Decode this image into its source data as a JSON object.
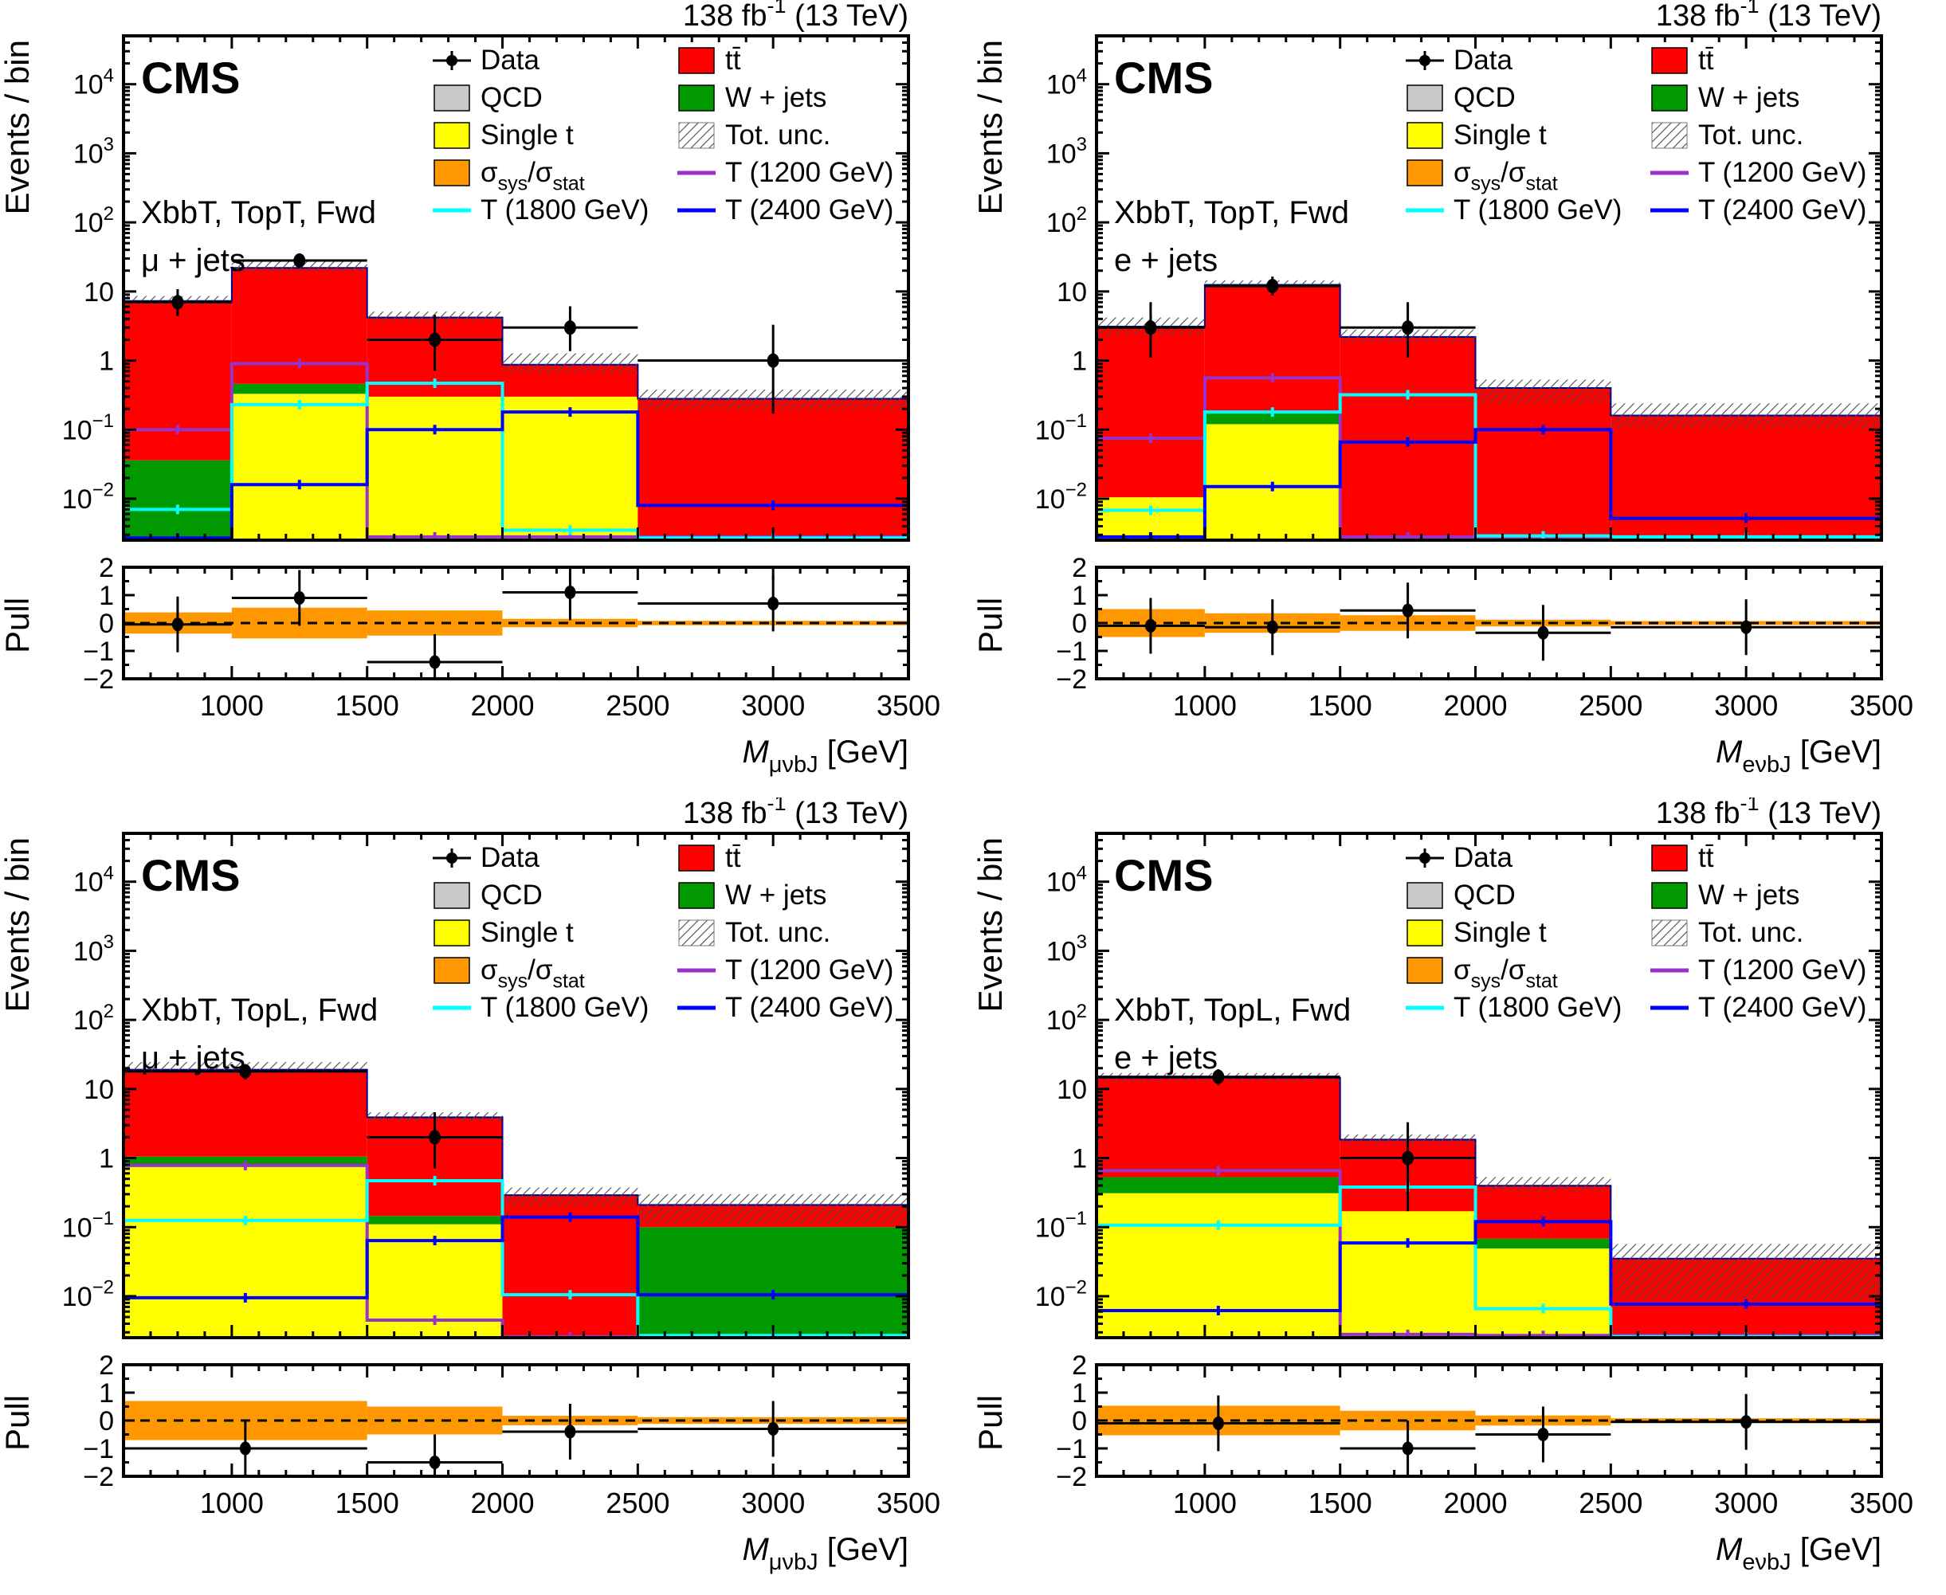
{
  "chart_data": {
    "type": "bar",
    "subtype": "stacked-log-histogram-with-pull-panels",
    "title": "CMS vector-like T quark search, post-fit mass distributions",
    "shared": {
      "cms_label": "CMS",
      "lumi_parts": [
        {
          "t": "138 fb"
        },
        {
          "t": "-1",
          "sup": 1
        },
        {
          "t": " (13 TeV)"
        }
      ],
      "ylabel": "Events / bin",
      "pull_label": "Pull",
      "x_unit": " [GeV]",
      "x_main": "M",
      "xticks_major": [
        1000,
        1500,
        2000,
        2500,
        3000,
        3500
      ],
      "x_min": 600,
      "x_max": 3500,
      "ylog_min_exp": -2.6,
      "ylog_max_exp": 4.7,
      "y_decade_labels": [
        -2,
        -1,
        0,
        1,
        2,
        3,
        4
      ],
      "pull_range": [
        -2,
        2
      ],
      "pull_ticks": [
        -2,
        -1,
        0,
        1,
        2
      ],
      "colors": {
        "ttbar": "#ff0000",
        "wjets": "#009900",
        "singlet": "#ffff00",
        "qcd": "#c8c8c8",
        "sys_band": "#ff9800",
        "t1200": "#9932cc",
        "t1800": "#00ffff",
        "t2400": "#0000ff",
        "stack_outline": "#00008b",
        "hatch_line": "#4a4a4a"
      },
      "legend": {
        "col1": [
          {
            "name": "data",
            "type": "marker",
            "parts": [
              {
                "t": "Data"
              }
            ]
          },
          {
            "name": "qcd",
            "type": "fill",
            "color": "#c8c8c8",
            "parts": [
              {
                "t": "QCD"
              }
            ]
          },
          {
            "name": "single-t",
            "type": "fill",
            "color": "#ffff00",
            "parts": [
              {
                "t": "Single t"
              }
            ]
          },
          {
            "name": "sys-stat",
            "type": "fill",
            "color": "#ff9800",
            "parts": [
              {
                "t": "σ"
              },
              {
                "t": "sys",
                "sub": 1
              },
              {
                "t": "/σ"
              },
              {
                "t": "stat",
                "sub": 1
              }
            ]
          },
          {
            "name": "t1800",
            "type": "line",
            "color": "#00ffff",
            "parts": [
              {
                "t": "T (1800 GeV)"
              }
            ]
          }
        ],
        "col2": [
          {
            "name": "ttbar",
            "type": "fill",
            "color": "#ff0000",
            "parts": [
              {
                "t": "tt̄"
              }
            ]
          },
          {
            "name": "wjets",
            "type": "fill",
            "color": "#009900",
            "parts": [
              {
                "t": "W + jets"
              }
            ]
          },
          {
            "name": "tot-unc",
            "type": "hatch",
            "parts": [
              {
                "t": "Tot. unc."
              }
            ]
          },
          {
            "name": "t1200",
            "type": "line",
            "color": "#9932cc",
            "parts": [
              {
                "t": "T (1200 GeV)"
              }
            ]
          },
          {
            "name": "t2400",
            "type": "line",
            "color": "#0000ff",
            "parts": [
              {
                "t": "T (2400 GeV)"
              }
            ]
          }
        ]
      }
    },
    "panels": [
      {
        "id": "topT-mujets",
        "region_label": "XbbT, TopT, Fwd",
        "channel_label": "μ + jets",
        "x_sub": "μνbJ",
        "bin_edges": [
          600,
          1000,
          1500,
          2000,
          2500,
          3500
        ],
        "stack": {
          "singlet": [
            0,
            0.33,
            0.3,
            0.3,
            0
          ],
          "wjets": [
            0.036,
            0.13,
            0,
            0,
            0
          ],
          "ttbar": [
            7.26,
            21.5,
            3.9,
            0.57,
            0.28
          ]
        },
        "unc_lo": [
          6.3,
          19,
          3.6,
          0.65,
          0.19
        ],
        "unc_hi": [
          8.6,
          27,
          5.1,
          1.27,
          0.38
        ],
        "signals": [
          {
            "key": "t1200",
            "values": [
              0.1,
              0.9,
              0.0028,
              0.0028,
              0.0028
            ]
          },
          {
            "key": "t1800",
            "values": [
              0.007,
              0.23,
              0.47,
              0.0035,
              0.0027
            ]
          },
          {
            "key": "t2400",
            "values": [
              0.0027,
              0.016,
              0.1,
              0.18,
              0.008
            ]
          }
        ],
        "data": {
          "y": [
            7,
            28,
            2,
            3,
            1
          ],
          "ylo": [
            4.4,
            22.7,
            0.71,
            1.37,
            0.17
          ],
          "yhi": [
            10.8,
            33.4,
            4.6,
            6.1,
            3.3
          ]
        },
        "pull": {
          "y": [
            -0.05,
            0.9,
            -1.4,
            1.1,
            0.7
          ],
          "band": [
            0.38,
            0.55,
            0.45,
            0.15,
            0.08
          ]
        }
      },
      {
        "id": "topT-ejets",
        "region_label": "XbbT, TopT, Fwd",
        "channel_label": "e + jets",
        "x_sub": "eνbJ",
        "bin_edges": [
          600,
          1000,
          1500,
          2000,
          2500,
          3500
        ],
        "stack": {
          "singlet": [
            0.0105,
            0.12,
            0,
            0,
            0
          ],
          "wjets": [
            0,
            0.055,
            0,
            0,
            0
          ],
          "ttbar": [
            3.09,
            12.3,
            2.2,
            0.4,
            0.16
          ]
        },
        "unc_lo": [
          2.3,
          11,
          1.8,
          0.24,
          0.105
        ],
        "unc_hi": [
          4.2,
          14.5,
          2.8,
          0.53,
          0.24
        ],
        "signals": [
          {
            "key": "t1200",
            "values": [
              0.075,
              0.56,
              0.0028,
              0.0028,
              0.0028
            ]
          },
          {
            "key": "t1800",
            "values": [
              0.0068,
              0.18,
              0.32,
              0.0029,
              0.0028
            ]
          },
          {
            "key": "t2400",
            "values": [
              0.0028,
              0.015,
              0.066,
              0.1,
              0.0052
            ]
          }
        ],
        "data": {
          "y": [
            3,
            12,
            3,
            null,
            null
          ],
          "ylo": [
            1.1,
            8.7,
            1.1,
            null,
            null
          ],
          "yhi": [
            7.0,
            16.4,
            7.0,
            null,
            null
          ]
        },
        "pull": {
          "y": [
            -0.1,
            -0.15,
            0.45,
            -0.35,
            -0.15
          ],
          "band": [
            0.5,
            0.35,
            0.28,
            0.12,
            0.07
          ]
        }
      },
      {
        "id": "topL-mujets",
        "region_label": "XbbT, TopL, Fwd",
        "channel_label": "μ + jets",
        "x_sub": "μνbJ",
        "bin_edges": [
          600,
          1500,
          2000,
          2500,
          3500
        ],
        "stack": {
          "singlet": [
            0.75,
            0.11,
            0,
            0
          ],
          "wjets": [
            0.3,
            0.035,
            0,
            0.1
          ],
          "ttbar": [
            17.95,
            3.75,
            0.29,
            0.11
          ]
        },
        "unc_lo": [
          16,
          3.3,
          0.2,
          0.11
        ],
        "unc_hi": [
          24.5,
          4.6,
          0.375,
          0.3
        ],
        "signals": [
          {
            "key": "t1200",
            "values": [
              0.78,
              0.0045,
              0.0026,
              0.0026
            ]
          },
          {
            "key": "t1800",
            "values": [
              0.125,
              0.47,
              0.0105,
              0.0027
            ]
          },
          {
            "key": "t2400",
            "values": [
              0.0095,
              0.064,
              0.14,
              0.0105
            ]
          }
        ],
        "data": {
          "y": [
            18,
            2,
            null,
            null
          ],
          "ylo": [
            13.8,
            0.71,
            null,
            null
          ],
          "yhi": [
            22.9,
            4.6,
            null,
            null
          ]
        },
        "pull": {
          "y": [
            -1.0,
            -1.5,
            -0.4,
            -0.3
          ],
          "band": [
            0.7,
            0.5,
            0.17,
            0.12
          ]
        }
      },
      {
        "id": "topL-ejets",
        "region_label": "XbbT, TopL, Fwd",
        "channel_label": "e + jets",
        "x_sub": "eνbJ",
        "bin_edges": [
          600,
          1500,
          2000,
          2500,
          3500
        ],
        "stack": {
          "singlet": [
            0.31,
            0.17,
            0.049,
            0
          ],
          "wjets": [
            0.22,
            0,
            0.019,
            0
          ],
          "ttbar": [
            13.97,
            1.68,
            0.33,
            0.035
          ]
        },
        "unc_lo": [
          12.6,
          1.55,
          0.33,
          0.009
        ],
        "unc_hi": [
          17,
          2.2,
          0.53,
          0.057
        ],
        "signals": [
          {
            "key": "t1200",
            "values": [
              0.66,
              0.0028,
              0.0027,
              0.0027
            ]
          },
          {
            "key": "t1800",
            "values": [
              0.107,
              0.38,
              0.0066,
              0.0026
            ]
          },
          {
            "key": "t2400",
            "values": [
              0.0062,
              0.059,
              0.12,
              0.0077
            ]
          }
        ],
        "data": {
          "y": [
            15,
            1,
            null,
            null
          ],
          "ylo": [
            11.4,
            0.17,
            null,
            null
          ],
          "yhi": [
            19.3,
            3.3,
            null,
            null
          ]
        },
        "pull": {
          "y": [
            -0.1,
            -1.0,
            -0.5,
            -0.05
          ],
          "band": [
            0.53,
            0.35,
            0.18,
            0.08
          ]
        }
      }
    ]
  }
}
